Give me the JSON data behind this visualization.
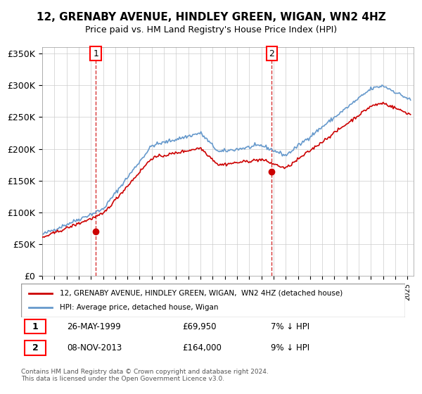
{
  "title": "12, GRENABY AVENUE, HINDLEY GREEN, WIGAN, WN2 4HZ",
  "subtitle": "Price paid vs. HM Land Registry's House Price Index (HPI)",
  "ylabel_ticks": [
    "£0",
    "£50K",
    "£100K",
    "£150K",
    "£200K",
    "£250K",
    "£300K",
    "£350K"
  ],
  "ytick_values": [
    0,
    50000,
    100000,
    150000,
    200000,
    250000,
    300000,
    350000
  ],
  "ylim": [
    0,
    360000
  ],
  "xlim_start": 1995.0,
  "xlim_end": 2025.5,
  "hpi_color": "#6699cc",
  "price_color": "#cc0000",
  "marker1_date": 1999.4,
  "marker1_price": 69950,
  "marker1_label": "1",
  "marker1_date_str": "26-MAY-1999",
  "marker1_price_str": "£69,950",
  "marker1_hpi_str": "7% ↓ HPI",
  "marker2_date": 2013.85,
  "marker2_price": 164000,
  "marker2_label": "2",
  "marker2_date_str": "08-NOV-2013",
  "marker2_price_str": "£164,000",
  "marker2_hpi_str": "9% ↓ HPI",
  "legend_line1": "12, GRENABY AVENUE, HINDLEY GREEN, WIGAN,  WN2 4HZ (detached house)",
  "legend_line2": "HPI: Average price, detached house, Wigan",
  "copyright_text": "Contains HM Land Registry data © Crown copyright and database right 2024.\nThis data is licensed under the Open Government Licence v3.0.",
  "background_color": "#ffffff",
  "grid_color": "#cccccc"
}
